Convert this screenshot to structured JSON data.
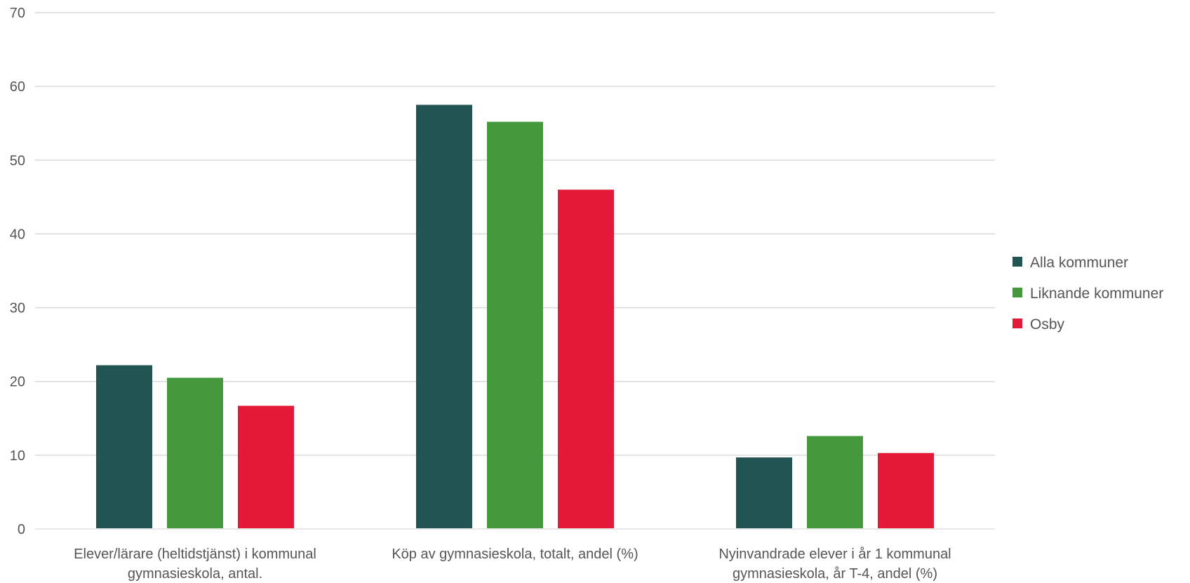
{
  "chart_data": {
    "type": "bar",
    "categories": [
      [
        "Elever/lärare (heltidstjänst) i kommunal",
        "gymnasieskola, antal."
      ],
      [
        "Köp av gymnasieskola, totalt, andel (%)"
      ],
      [
        "Nyinvandrade elever i år 1 kommunal",
        "gymnasieskola, år T-4, andel (%)"
      ]
    ],
    "series": [
      {
        "name": "Alla kommuner",
        "color": "#225454",
        "values": [
          22.2,
          57.5,
          9.7
        ]
      },
      {
        "name": "Liknande kommuner",
        "color": "#43993c",
        "values": [
          20.5,
          55.2,
          12.6
        ]
      },
      {
        "name": "Osby",
        "color": "#e31937",
        "values": [
          16.7,
          46.0,
          10.3
        ]
      }
    ],
    "ylim": [
      0,
      70
    ],
    "yticks": [
      0,
      10,
      20,
      30,
      40,
      50,
      60,
      70
    ],
    "grid": true,
    "legend_position": "right",
    "title": "",
    "xlabel": "",
    "ylabel": ""
  }
}
